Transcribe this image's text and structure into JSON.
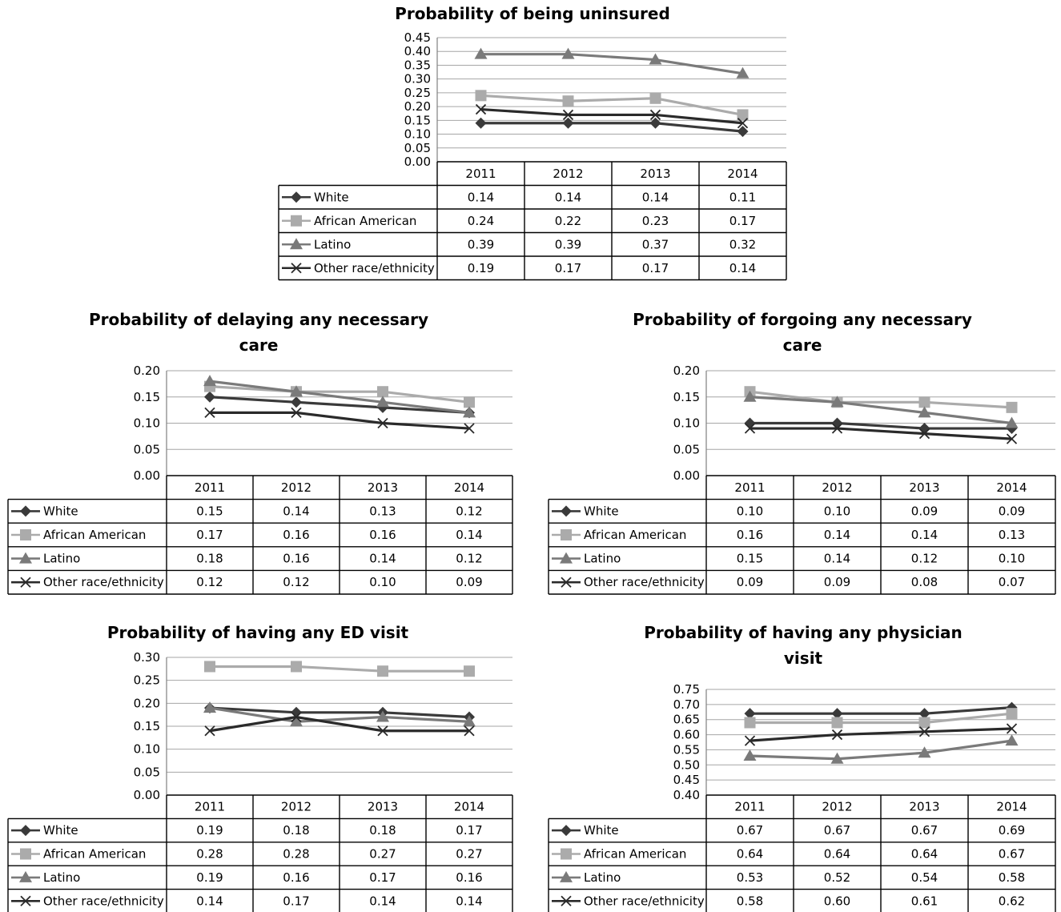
{
  "colors": {
    "White": "#3a3a3a",
    "African American": "#ababab",
    "Latino": "#7a7a7a",
    "Other race/ethnicity": "#2a2a2a",
    "grid": "#a6a6a6",
    "axis": "#808080",
    "border": "#000000"
  },
  "chart_data": [
    {
      "type": "line",
      "title": [
        "Probability of being uninsured"
      ],
      "categories": [
        "2011",
        "2012",
        "2013",
        "2014"
      ],
      "ylim": [
        0,
        0.45
      ],
      "y_ticks": [
        "0.00",
        "0.05",
        "0.10",
        "0.15",
        "0.20",
        "0.25",
        "0.30",
        "0.35",
        "0.40",
        "0.45"
      ],
      "grid": true,
      "legend_placement": "data-table-below",
      "series": [
        {
          "name": "White",
          "marker": "diamond",
          "values": [
            0.14,
            0.14,
            0.14,
            0.11
          ],
          "labels": [
            "0.14",
            "0.14",
            "0.14",
            "0.11"
          ]
        },
        {
          "name": "African American",
          "marker": "square",
          "values": [
            0.24,
            0.22,
            0.23,
            0.17
          ],
          "labels": [
            "0.24",
            "0.22",
            "0.23",
            "0.17"
          ]
        },
        {
          "name": "Latino",
          "marker": "triangle",
          "values": [
            0.39,
            0.39,
            0.37,
            0.32
          ],
          "labels": [
            "0.39",
            "0.39",
            "0.37",
            "0.32"
          ]
        },
        {
          "name": "Other race/ethnicity",
          "marker": "x",
          "values": [
            0.19,
            0.17,
            0.17,
            0.14
          ],
          "labels": [
            "0.19",
            "0.17",
            "0.17",
            "0.14"
          ]
        }
      ]
    },
    {
      "type": "line",
      "title": [
        "Probability of delaying any necessary",
        "care"
      ],
      "categories": [
        "2011",
        "2012",
        "2013",
        "2014"
      ],
      "ylim": [
        0,
        0.2
      ],
      "y_ticks": [
        "0.00",
        "0.05",
        "0.10",
        "0.15",
        "0.20"
      ],
      "grid": true,
      "legend_placement": "data-table-below",
      "series": [
        {
          "name": "White",
          "marker": "diamond",
          "values": [
            0.15,
            0.14,
            0.13,
            0.12
          ],
          "labels": [
            "0.15",
            "0.14",
            "0.13",
            "0.12"
          ]
        },
        {
          "name": "African American",
          "marker": "square",
          "values": [
            0.17,
            0.16,
            0.16,
            0.14
          ],
          "labels": [
            "0.17",
            "0.16",
            "0.16",
            "0.14"
          ]
        },
        {
          "name": "Latino",
          "marker": "triangle",
          "values": [
            0.18,
            0.16,
            0.14,
            0.12
          ],
          "labels": [
            "0.18",
            "0.16",
            "0.14",
            "0.12"
          ]
        },
        {
          "name": "Other race/ethnicity",
          "marker": "x",
          "values": [
            0.12,
            0.12,
            0.1,
            0.09
          ],
          "labels": [
            "0.12",
            "0.12",
            "0.10",
            "0.09"
          ]
        }
      ]
    },
    {
      "type": "line",
      "title": [
        "Probability of forgoing any necessary",
        "care"
      ],
      "categories": [
        "2011",
        "2012",
        "2013",
        "2014"
      ],
      "ylim": [
        0,
        0.2
      ],
      "y_ticks": [
        "0.00",
        "0.05",
        "0.10",
        "0.15",
        "0.20"
      ],
      "grid": true,
      "legend_placement": "data-table-below",
      "series": [
        {
          "name": "White",
          "marker": "diamond",
          "values": [
            0.1,
            0.1,
            0.09,
            0.09
          ],
          "labels": [
            "0.10",
            "0.10",
            "0.09",
            "0.09"
          ]
        },
        {
          "name": "African American",
          "marker": "square",
          "values": [
            0.16,
            0.14,
            0.14,
            0.13
          ],
          "labels": [
            "0.16",
            "0.14",
            "0.14",
            "0.13"
          ]
        },
        {
          "name": "Latino",
          "marker": "triangle",
          "values": [
            0.15,
            0.14,
            0.12,
            0.1
          ],
          "labels": [
            "0.15",
            "0.14",
            "0.12",
            "0.10"
          ]
        },
        {
          "name": "Other race/ethnicity",
          "marker": "x",
          "values": [
            0.09,
            0.09,
            0.08,
            0.07
          ],
          "labels": [
            "0.09",
            "0.09",
            "0.08",
            "0.07"
          ]
        }
      ]
    },
    {
      "type": "line",
      "title": [
        "Probability of having any ED visit"
      ],
      "categories": [
        "2011",
        "2012",
        "2013",
        "2014"
      ],
      "ylim": [
        0,
        0.3
      ],
      "y_ticks": [
        "0.00",
        "0.05",
        "0.10",
        "0.15",
        "0.20",
        "0.25",
        "0.30"
      ],
      "grid": true,
      "legend_placement": "data-table-below",
      "series": [
        {
          "name": "White",
          "marker": "diamond",
          "values": [
            0.19,
            0.18,
            0.18,
            0.17
          ],
          "labels": [
            "0.19",
            "0.18",
            "0.18",
            "0.17"
          ]
        },
        {
          "name": "African American",
          "marker": "square",
          "values": [
            0.28,
            0.28,
            0.27,
            0.27
          ],
          "labels": [
            "0.28",
            "0.28",
            "0.27",
            "0.27"
          ]
        },
        {
          "name": "Latino",
          "marker": "triangle",
          "values": [
            0.19,
            0.16,
            0.17,
            0.16
          ],
          "labels": [
            "0.19",
            "0.16",
            "0.17",
            "0.16"
          ]
        },
        {
          "name": "Other race/ethnicity",
          "marker": "x",
          "values": [
            0.14,
            0.17,
            0.14,
            0.14
          ],
          "labels": [
            "0.14",
            "0.17",
            "0.14",
            "0.14"
          ]
        }
      ]
    },
    {
      "type": "line",
      "title": [
        "Probability of having any physician",
        "visit"
      ],
      "categories": [
        "2011",
        "2012",
        "2013",
        "2014"
      ],
      "ylim": [
        0.4,
        0.75
      ],
      "y_ticks": [
        "0.40",
        "0.45",
        "0.50",
        "0.55",
        "0.60",
        "0.65",
        "0.70",
        "0.75"
      ],
      "grid": true,
      "legend_placement": "data-table-below",
      "series": [
        {
          "name": "White",
          "marker": "diamond",
          "values": [
            0.67,
            0.67,
            0.67,
            0.69
          ],
          "labels": [
            "0.67",
            "0.67",
            "0.67",
            "0.69"
          ]
        },
        {
          "name": "African American",
          "marker": "square",
          "values": [
            0.64,
            0.64,
            0.64,
            0.67
          ],
          "labels": [
            "0.64",
            "0.64",
            "0.64",
            "0.67"
          ]
        },
        {
          "name": "Latino",
          "marker": "triangle",
          "values": [
            0.53,
            0.52,
            0.54,
            0.58
          ],
          "labels": [
            "0.53",
            "0.52",
            "0.54",
            "0.58"
          ]
        },
        {
          "name": "Other race/ethnicity",
          "marker": "x",
          "values": [
            0.58,
            0.6,
            0.61,
            0.62
          ],
          "labels": [
            "0.58",
            "0.60",
            "0.61",
            "0.62"
          ]
        }
      ]
    }
  ]
}
